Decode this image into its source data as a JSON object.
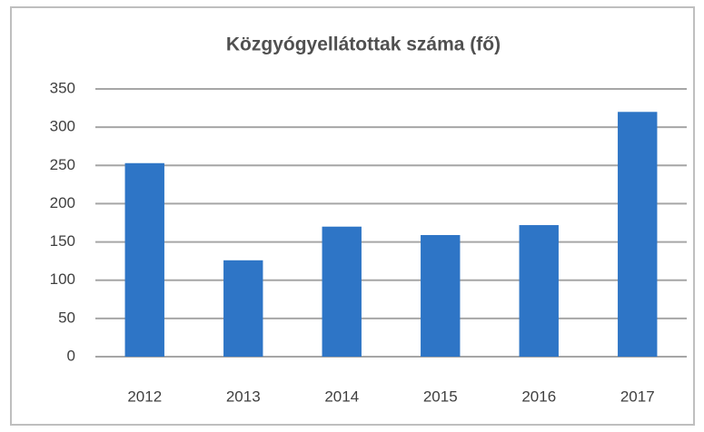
{
  "chart_data": {
    "type": "bar",
    "title": "Közgyógyellátottak száma (fő)",
    "categories": [
      "2012",
      "2013",
      "2014",
      "2015",
      "2016",
      "2017"
    ],
    "values": [
      253,
      126,
      170,
      159,
      172,
      320
    ],
    "color": "#2e75c6",
    "ylim": [
      0,
      350
    ],
    "yticks": [
      0,
      50,
      100,
      150,
      200,
      250,
      300,
      350
    ],
    "grid": true
  }
}
